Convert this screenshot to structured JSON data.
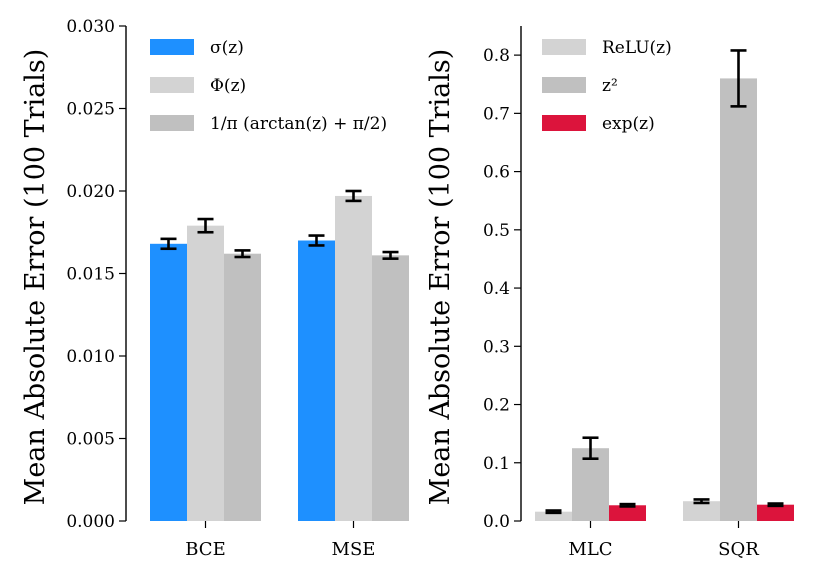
{
  "chart_data": [
    {
      "type": "bar",
      "categories": [
        "BCE",
        "MSE"
      ],
      "ylabel": "Mean Absolute Error (100 Trials)",
      "ylim": [
        0,
        0.03
      ],
      "yticks": [
        "0.000",
        "0.005",
        "0.010",
        "0.015",
        "0.020",
        "0.025",
        "0.030"
      ],
      "ytick_values": [
        0,
        0.005,
        0.01,
        0.015,
        0.02,
        0.025,
        0.03
      ],
      "legend_position": "top-left",
      "series": [
        {
          "name": "σ(z)",
          "color": "#1e90ff",
          "values": [
            0.0168,
            0.017
          ],
          "errors": [
            0.0003,
            0.0003
          ]
        },
        {
          "name": "Φ(z)",
          "color": "#d3d3d3",
          "values": [
            0.0179,
            0.0197
          ],
          "errors": [
            0.0004,
            0.0003
          ]
        },
        {
          "name": "1/π (arctan(z) + π/2)",
          "color": "#c0c0c0",
          "values": [
            0.0162,
            0.0161
          ],
          "errors": [
            0.0002,
            0.0002
          ]
        }
      ]
    },
    {
      "type": "bar",
      "categories": [
        "MLC",
        "SQR"
      ],
      "ylabel": "Mean Absolute Error (100 Trials)",
      "ylim": [
        0,
        0.85
      ],
      "yticks": [
        "0.0",
        "0.1",
        "0.2",
        "0.3",
        "0.4",
        "0.5",
        "0.6",
        "0.7",
        "0.8"
      ],
      "ytick_values": [
        0,
        0.1,
        0.2,
        0.3,
        0.4,
        0.5,
        0.6,
        0.7,
        0.8
      ],
      "legend_position": "top-left",
      "series": [
        {
          "name": "ReLU(z)",
          "color": "#d3d3d3",
          "values": [
            0.016,
            0.034
          ],
          "errors": [
            0.002,
            0.003
          ]
        },
        {
          "name": "z²",
          "color": "#c0c0c0",
          "values": [
            0.125,
            0.76
          ],
          "errors": [
            0.018,
            0.048
          ]
        },
        {
          "name": "exp(z)",
          "color": "#dc143c",
          "values": [
            0.027,
            0.028
          ],
          "errors": [
            0.002,
            0.002
          ]
        }
      ]
    }
  ]
}
